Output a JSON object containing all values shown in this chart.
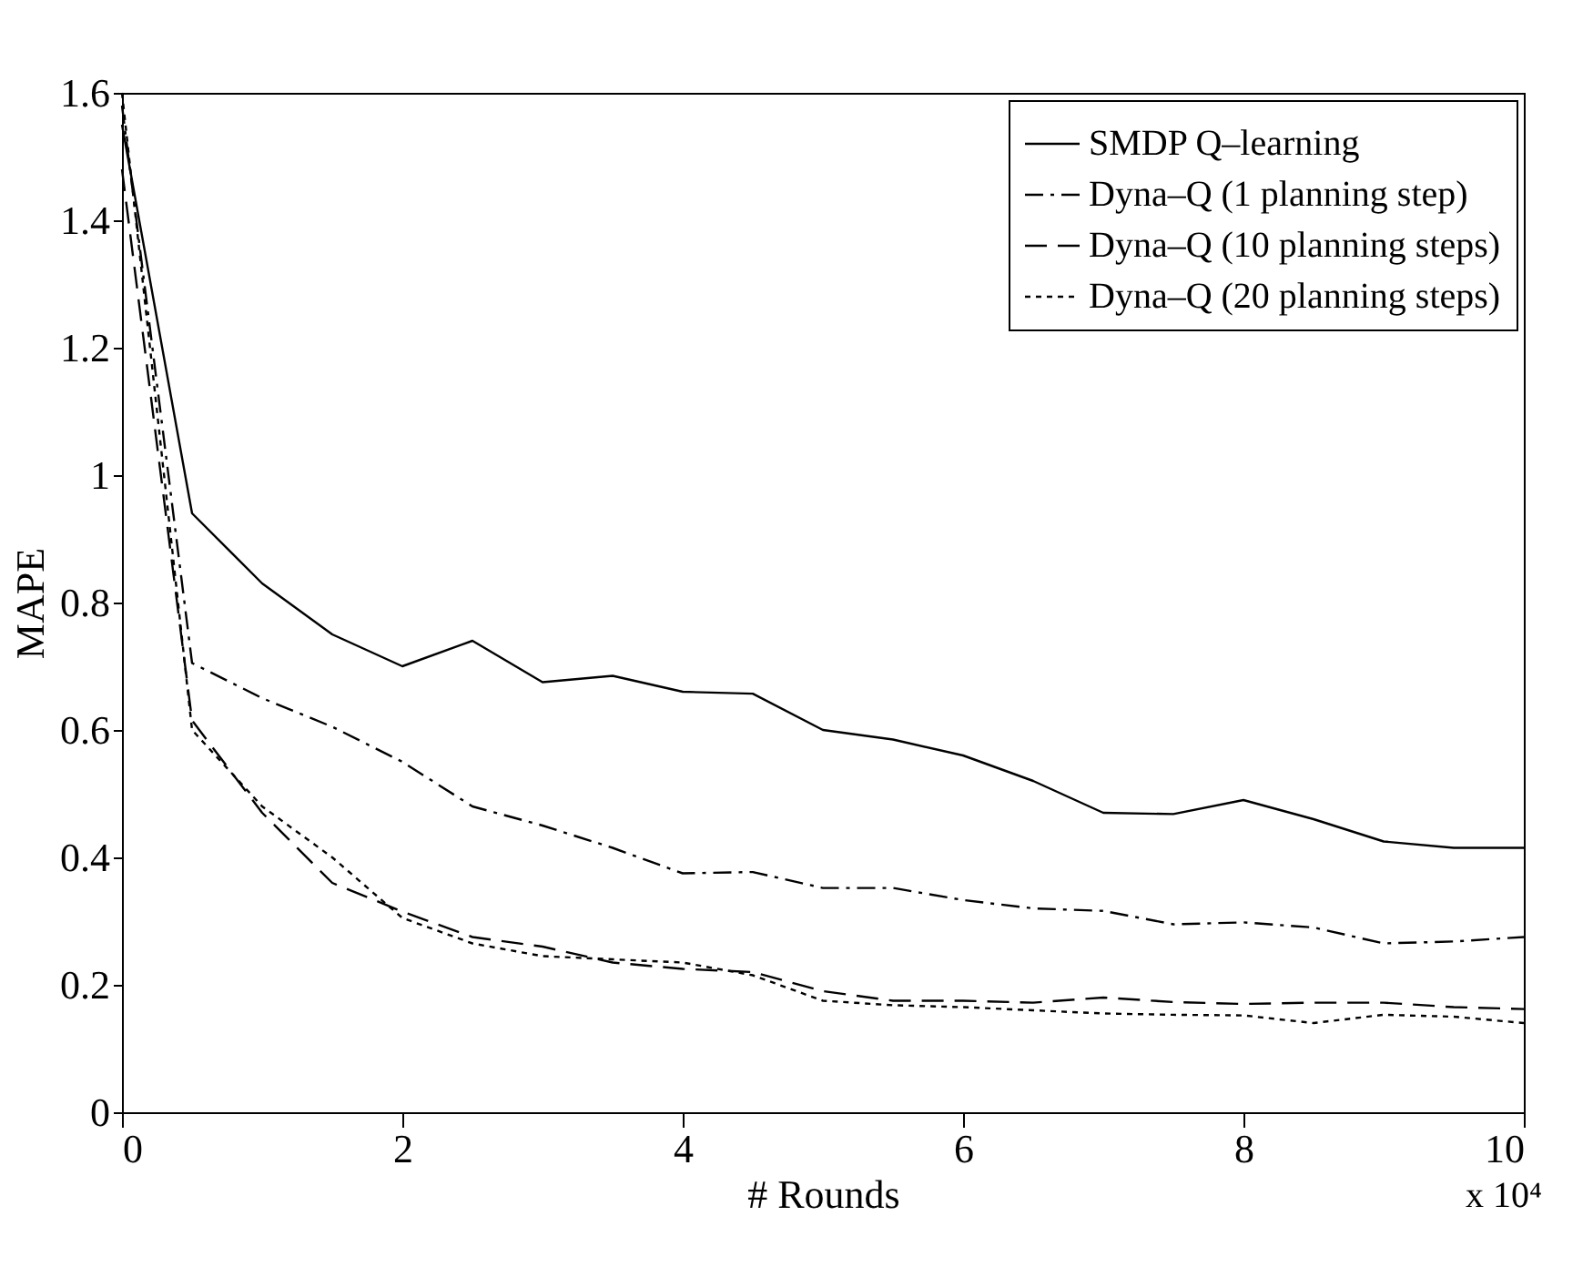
{
  "chart_data": {
    "type": "line",
    "xlabel": "# Rounds",
    "ylabel": "MAPE",
    "x": [
      0,
      0.5,
      1,
      1.5,
      2,
      2.5,
      3,
      3.5,
      4,
      4.5,
      5,
      5.5,
      6,
      6.5,
      7,
      7.5,
      8,
      8.5,
      9,
      9.5,
      10
    ],
    "series": [
      {
        "name": "SMDP Q–learning",
        "color": "#000000",
        "line_style": "solid",
        "values": [
          1.55,
          0.94,
          0.83,
          0.75,
          0.7,
          0.74,
          0.675,
          0.685,
          0.66,
          0.657,
          0.6,
          0.585,
          0.56,
          0.52,
          0.47,
          0.468,
          0.49,
          0.46,
          0.425,
          0.415,
          0.415
        ]
      },
      {
        "name": "Dyna–Q (1 planning step)",
        "color": "#000000",
        "line_style": "dashdot",
        "values": [
          1.58,
          0.705,
          0.65,
          0.605,
          0.55,
          0.48,
          0.45,
          0.415,
          0.375,
          0.377,
          0.352,
          0.352,
          0.333,
          0.32,
          0.316,
          0.295,
          0.298,
          0.29,
          0.265,
          0.268,
          0.275
        ]
      },
      {
        "name": "Dyna–Q (10 planning steps)",
        "color": "#000000",
        "line_style": "dashed",
        "values": [
          1.48,
          0.615,
          0.47,
          0.36,
          0.315,
          0.275,
          0.26,
          0.235,
          0.225,
          0.22,
          0.19,
          0.175,
          0.175,
          0.172,
          0.18,
          0.173,
          0.17,
          0.172,
          0.172,
          0.165,
          0.162
        ]
      },
      {
        "name": "Dyna–Q (20 planning steps)",
        "color": "#000000",
        "line_style": "dotted",
        "values": [
          1.6,
          0.6,
          0.48,
          0.4,
          0.305,
          0.265,
          0.245,
          0.24,
          0.235,
          0.215,
          0.175,
          0.168,
          0.165,
          0.16,
          0.155,
          0.153,
          0.152,
          0.14,
          0.153,
          0.15,
          0.14
        ]
      }
    ],
    "xlim": [
      0,
      10
    ],
    "xticks": [
      0,
      2,
      4,
      6,
      8,
      10
    ],
    "ylim": [
      0,
      1.6
    ],
    "yticks": [
      0,
      0.2,
      0.4,
      0.6,
      0.8,
      1,
      1.2,
      1.4,
      1.6
    ],
    "annotations": [
      "x 10⁴"
    ],
    "legend": "top right",
    "grid": false,
    "marker": "none"
  }
}
